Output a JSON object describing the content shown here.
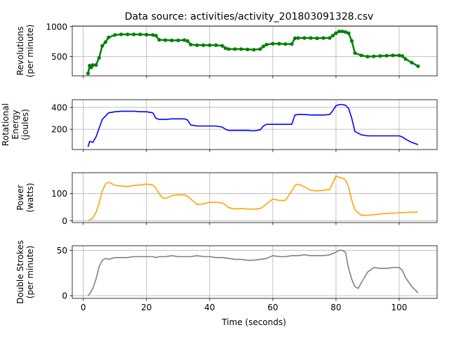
{
  "chart_data": {
    "type": "line",
    "title": "Data source: activities/activity_201803091328.csv",
    "xlabel": "Time (seconds)",
    "xlim": [
      -3.5,
      112
    ],
    "xticks": [
      0,
      20,
      40,
      60,
      80,
      100
    ],
    "x_tick_labels": [
      "0",
      "20",
      "40",
      "60",
      "80",
      "100"
    ],
    "subplots": [
      {
        "id": "revolutions",
        "ylabel_lines": [
          "Revolutions",
          "(per minute)"
        ],
        "color": "#008000",
        "marker": "dot",
        "ylim": [
          180,
          1010
        ],
        "yticks": [
          500,
          1000
        ],
        "y_tick_labels": [
          "500",
          "1000"
        ],
        "series": [
          {
            "x": [
              1.5,
              2,
              2.5,
              3,
              4,
              5,
              6,
              7,
              8,
              10,
              12,
              14,
              16,
              18,
              20,
              22,
              23,
              24,
              26,
              28,
              30,
              32,
              33,
              34,
              36,
              38,
              40,
              42,
              44,
              45,
              46,
              48,
              50,
              52,
              54,
              56,
              57,
              58,
              60,
              62,
              64,
              66,
              67,
              68,
              70,
              72,
              74,
              76,
              78,
              79,
              80,
              81,
              82,
              83,
              84,
              85,
              86,
              88,
              90,
              92,
              94,
              96,
              98,
              100,
              101,
              102,
              104,
              106
            ],
            "y": [
              220,
              350,
              320,
              360,
              360,
              480,
              680,
              740,
              820,
              860,
              870,
              870,
              870,
              870,
              865,
              860,
              850,
              780,
              775,
              770,
              770,
              775,
              760,
              700,
              690,
              690,
              690,
              690,
              680,
              640,
              625,
              625,
              625,
              620,
              615,
              625,
              670,
              700,
              715,
              715,
              710,
              710,
              805,
              810,
              810,
              810,
              805,
              810,
              810,
              850,
              890,
              920,
              920,
              910,
              890,
              760,
              560,
              520,
              500,
              505,
              510,
              515,
              520,
              520,
              510,
              460,
              400,
              340
            ]
          }
        ]
      },
      {
        "id": "energy",
        "ylabel_lines": [
          "Rotational",
          "Energy",
          "(joules)"
        ],
        "color": "#0000ff",
        "ylim": [
          15,
          470
        ],
        "yticks": [
          200,
          400
        ],
        "y_tick_labels": [
          "200",
          "400"
        ],
        "series": [
          {
            "x": [
              1.5,
              2,
              3,
              4,
              5,
              6,
              7,
              8,
              10,
              12,
              14,
              16,
              18,
              20,
              22,
              23,
              24,
              26,
              28,
              30,
              32,
              33,
              34,
              36,
              38,
              40,
              42,
              44,
              45,
              46,
              48,
              50,
              52,
              54,
              56,
              57,
              58,
              60,
              62,
              64,
              66,
              67,
              68,
              70,
              72,
              74,
              76,
              78,
              79,
              80,
              81,
              82,
              83,
              84,
              85,
              86,
              88,
              90,
              92,
              94,
              96,
              98,
              100,
              101,
              102,
              104,
              106
            ],
            "y": [
              40,
              90,
              80,
              130,
              210,
              290,
              320,
              350,
              360,
              365,
              365,
              365,
              360,
              360,
              350,
              300,
              290,
              290,
              295,
              295,
              295,
              285,
              240,
              230,
              230,
              230,
              230,
              220,
              200,
              190,
              190,
              190,
              190,
              185,
              195,
              230,
              245,
              245,
              245,
              245,
              245,
              330,
              335,
              335,
              330,
              330,
              330,
              335,
              370,
              415,
              425,
              425,
              420,
              390,
              300,
              180,
              150,
              140,
              140,
              140,
              140,
              140,
              140,
              130,
              110,
              80,
              60
            ]
          }
        ]
      },
      {
        "id": "power",
        "ylabel_lines": [
          "Power",
          "(watts)"
        ],
        "color": "#ffa500",
        "ylim": [
          -7,
          177
        ],
        "yticks": [
          0,
          100
        ],
        "y_tick_labels": [
          "0",
          "100"
        ],
        "series": [
          {
            "x": [
              1.5,
              2,
              3,
              4,
              5,
              6,
              7,
              8,
              8.5,
              10,
              12,
              14,
              16,
              18,
              20,
              22,
              23,
              24,
              25,
              26,
              28,
              30,
              32,
              33,
              34,
              35,
              36,
              38,
              40,
              42,
              44,
              45,
              46,
              48,
              50,
              52,
              54,
              56,
              57,
              58,
              60,
              62,
              64,
              66,
              67,
              68,
              70,
              72,
              74,
              76,
              78,
              79,
              80,
              81,
              82,
              83,
              84,
              85,
              86,
              88,
              90,
              92,
              94,
              96,
              98,
              100,
              102,
              104,
              106
            ],
            "y": [
              0,
              2,
              10,
              30,
              65,
              110,
              135,
              142,
              140,
              130,
              128,
              126,
              130,
              132,
              135,
              132,
              120,
              100,
              85,
              82,
              92,
              95,
              95,
              90,
              80,
              70,
              60,
              62,
              68,
              68,
              65,
              58,
              48,
              43,
              45,
              43,
              42,
              45,
              52,
              62,
              80,
              75,
              75,
              110,
              130,
              135,
              125,
              112,
              110,
              112,
              115,
              140,
              165,
              160,
              158,
              150,
              125,
              75,
              40,
              20,
              20,
              22,
              25,
              27,
              28,
              29,
              30,
              31,
              32
            ]
          }
        ]
      },
      {
        "id": "strokes",
        "ylabel_lines": [
          "Double Strokes",
          "(per minute)"
        ],
        "color": "#808080",
        "ylim": [
          -3,
          55
        ],
        "yticks": [
          0,
          50
        ],
        "y_tick_labels": [
          "0",
          "50"
        ],
        "series": [
          {
            "x": [
              1.5,
              2,
              3,
              4,
              5,
              6,
              7,
              8,
              10,
              12,
              14,
              16,
              18,
              20,
              22,
              23,
              24,
              26,
              28,
              30,
              32,
              34,
              36,
              38,
              40,
              42,
              44,
              46,
              48,
              50,
              52,
              54,
              56,
              58,
              60,
              62,
              64,
              66,
              68,
              70,
              72,
              74,
              76,
              78,
              80,
              81,
              82,
              83,
              84,
              85,
              86,
              87,
              88,
              90,
              92,
              94,
              96,
              98,
              100,
              101,
              102,
              104,
              106
            ],
            "y": [
              0,
              2,
              8,
              18,
              32,
              39,
              41,
              40,
              42,
              42,
              42,
              43,
              43,
              43,
              43,
              42,
              43,
              43,
              44,
              43,
              43,
              43,
              44,
              43,
              43,
              42,
              42,
              41,
              40,
              40,
              39,
              39,
              40,
              41,
              44,
              43,
              43,
              44,
              44,
              45,
              44,
              44,
              44,
              45,
              48,
              50,
              50,
              48,
              30,
              18,
              10,
              8,
              14,
              26,
              31,
              30,
              30,
              31,
              31,
              28,
              20,
              10,
              3
            ]
          }
        ]
      }
    ]
  }
}
